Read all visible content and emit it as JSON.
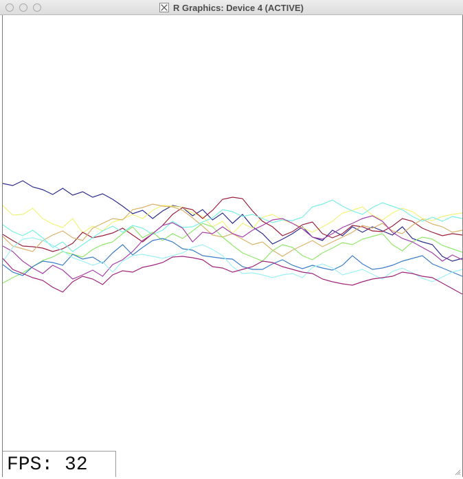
{
  "window": {
    "title": "R Graphics: Device 4 (ACTIVE)",
    "title_icon": "x11-icon"
  },
  "fps": {
    "label": "FPS:",
    "value": "32"
  },
  "plot": {
    "series": [
      {
        "color": "#2b2b8c",
        "y": [
          267,
          270,
          263,
          272,
          276,
          283,
          274,
          284,
          279,
          287,
          282,
          290,
          300,
          311,
          306,
          318,
          307,
          299,
          302,
          314,
          305,
          320,
          310,
          325,
          312,
          330,
          340,
          355,
          348,
          340,
          330,
          345,
          350,
          335,
          343,
          330,
          338,
          330,
          336,
          342,
          330,
          347,
          352,
          356,
          373,
          380,
          376
        ]
      },
      {
        "color": "#f2f27a",
        "y": [
          299,
          313,
          312,
          303,
          318,
          326,
          331,
          318,
          339,
          329,
          336,
          323,
          319,
          312,
          318,
          306,
          299,
          300,
          302,
          310,
          315,
          330,
          322,
          340,
          325,
          332,
          316,
          312,
          320,
          325,
          331,
          338,
          330,
          322,
          310,
          306,
          301,
          313,
          320,
          310,
          303,
          308,
          318,
          321,
          315,
          312,
          310
        ]
      },
      {
        "color": "#9a1e3c",
        "y": [
          341,
          350,
          358,
          359,
          361,
          366,
          362,
          354,
          338,
          346,
          343,
          339,
          332,
          342,
          352,
          340,
          328,
          312,
          302,
          305,
          318,
          306,
          290,
          287,
          289,
          307,
          322,
          330,
          343,
          337,
          327,
          323,
          340,
          346,
          340,
          328,
          330,
          336,
          337,
          329,
          318,
          322,
          332,
          338,
          343,
          340,
          342
        ]
      },
      {
        "color": "#d9b26a",
        "y": [
          344,
          358,
          362,
          366,
          350,
          342,
          336,
          346,
          350,
          332,
          325,
          318,
          320,
          305,
          302,
          297,
          300,
          301,
          306,
          317,
          329,
          342,
          345,
          340,
          348,
          356,
          352,
          364,
          373,
          364,
          357,
          350,
          359,
          352,
          345,
          338,
          328,
          332,
          325,
          336,
          340,
          328,
          319,
          326,
          330,
          338,
          335
        ]
      },
      {
        "color": "#78f0e4",
        "y": [
          327,
          337,
          343,
          335,
          346,
          360,
          352,
          366,
          356,
          346,
          336,
          329,
          338,
          328,
          332,
          341,
          335,
          322,
          331,
          330,
          323,
          317,
          305,
          308,
          315,
          312,
          318,
          324,
          320,
          321,
          316,
          301,
          297,
          291,
          300,
          307,
          312,
          302,
          295,
          300,
          305,
          315,
          322,
          316,
          322,
          315,
          318
        ]
      },
      {
        "color": "#8fe86a",
        "y": [
          412,
          404,
          397,
          388,
          379,
          374,
          366,
          370,
          374,
          363,
          356,
          352,
          340,
          330,
          346,
          338,
          350,
          340,
          347,
          336,
          325,
          330,
          345,
          357,
          368,
          374,
          380,
          365,
          356,
          360,
          372,
          378,
          368,
          361,
          353,
          356,
          348,
          344,
          340,
          356,
          365,
          352,
          345,
          348,
          357,
          362,
          367
        ]
      },
      {
        "color": "#a53ea8",
        "y": [
          358,
          366,
          380,
          390,
          398,
          386,
          393,
          406,
          400,
          393,
          402,
          385,
          378,
          366,
          350,
          340,
          328,
          324,
          332,
          352,
          338,
          340,
          330,
          340,
          345,
          335,
          328,
          320,
          318,
          325,
          333,
          345,
          348,
          340,
          331,
          325,
          318,
          314,
          322,
          338,
          347,
          352,
          360,
          368,
          380,
          371,
          378
        ]
      },
      {
        "color": "#3a7cc8",
        "y": [
          385,
          396,
          401,
          388,
          380,
          382,
          386,
          370,
          377,
          374,
          383,
          368,
          356,
          371,
          360,
          350,
          347,
          352,
          362,
          364,
          372,
          374,
          376,
          377,
          388,
          392,
          392,
          384,
          378,
          386,
          391,
          386,
          390,
          393,
          386,
          372,
          384,
          392,
          390,
          386,
          380,
          376,
          372,
          384,
          390,
          396,
          402
        ]
      },
      {
        "color": "#9ef0f4",
        "y": [
          381,
          360,
          348,
          346,
          350,
          357,
          365,
          375,
          380,
          386,
          381,
          396,
          380,
          372,
          370,
          373,
          376,
          372,
          368,
          360,
          356,
          363,
          372,
          388,
          398,
          397,
          400,
          404,
          400,
          398,
          404,
          389,
          384,
          390,
          400,
          396,
          392,
          399,
          406,
          395,
          390,
          397,
          405,
          410,
          403,
          396,
          392
        ]
      },
      {
        "color": "#a0227a",
        "y": [
          376,
          392,
          398,
          404,
          408,
          418,
          425,
          410,
          402,
          406,
          414,
          400,
          394,
          396,
          389,
          386,
          382,
          374,
          373,
          375,
          378,
          388,
          390,
          396,
          392,
          388,
          380,
          382,
          388,
          392,
          396,
          398,
          406,
          410,
          413,
          415,
          410,
          406,
          404,
          402,
          396,
          398,
          402,
          404,
          412,
          420,
          428
        ]
      }
    ]
  }
}
